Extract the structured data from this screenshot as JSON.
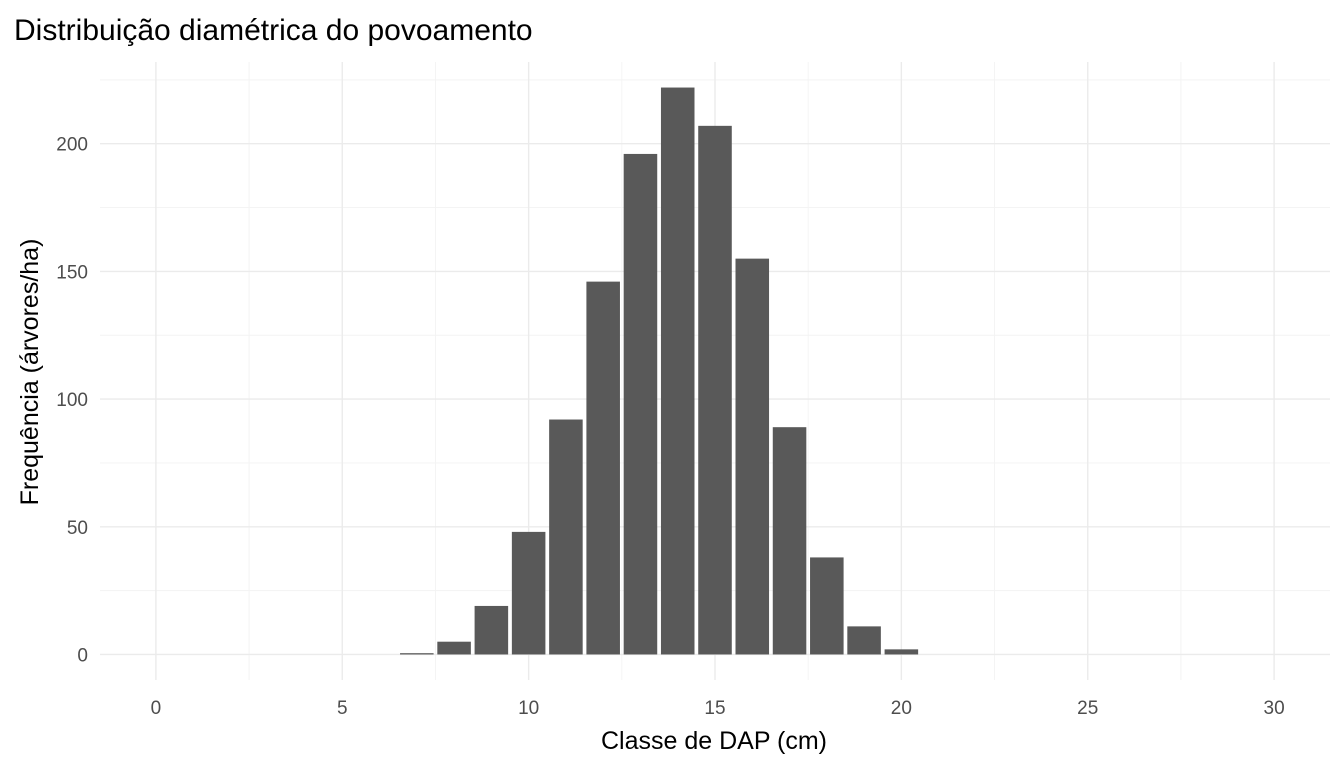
{
  "chart_data": {
    "type": "bar",
    "title": "Distribuição diamétrica do povoamento",
    "xlabel": "Classe de DAP (cm)",
    "ylabel": "Frequência (árvores/ha)",
    "x": [
      7,
      8,
      9,
      10,
      11,
      12,
      13,
      14,
      15,
      16,
      17,
      18,
      19,
      20
    ],
    "values": [
      0.5,
      5,
      19,
      48,
      92,
      146,
      196,
      222,
      207,
      155,
      89,
      38,
      11,
      2
    ],
    "xlim": [
      -1.5,
      31.5
    ],
    "ylim": [
      -10,
      232
    ],
    "xticks": [
      0,
      5,
      10,
      15,
      20,
      25,
      30
    ],
    "yticks": [
      0,
      50,
      100,
      150,
      200
    ],
    "xtick_labels": [
      "0",
      "5",
      "10",
      "15",
      "20",
      "25",
      "30"
    ],
    "ytick_labels": [
      "0",
      "50",
      "100",
      "150",
      "200"
    ],
    "grid": true,
    "bar_color": "#595959"
  }
}
